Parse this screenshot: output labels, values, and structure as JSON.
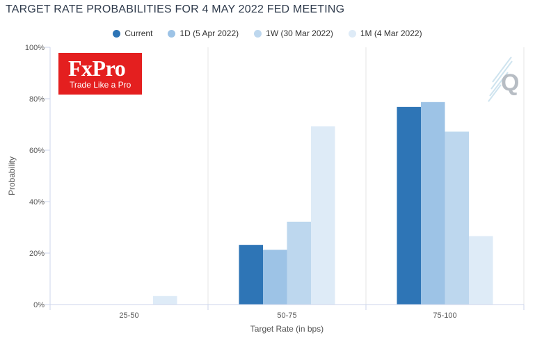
{
  "title": "TARGET RATE PROBABILITIES FOR 4 MAY 2022 FED MEETING",
  "logo": {
    "name": "FxPro",
    "tagline": "Trade Like a Pro"
  },
  "watermark_icon": "q-logo-icon",
  "chart_data": {
    "type": "bar",
    "title": "TARGET RATE PROBABILITIES FOR 4 MAY 2022 FED MEETING",
    "xlabel": "Target Rate (in bps)",
    "ylabel": "Probability",
    "categories": [
      "25-50",
      "50-75",
      "75-100"
    ],
    "ylim": [
      0,
      100
    ],
    "yticks": [
      "0%",
      "20%",
      "40%",
      "60%",
      "80%",
      "100%"
    ],
    "ytick_values": [
      0,
      20,
      40,
      60,
      80,
      100
    ],
    "legend_position": "top-center",
    "grid": "vertical",
    "series": [
      {
        "name": "Current",
        "color": "#2e75b6",
        "values": [
          0,
          23.2,
          76.8
        ]
      },
      {
        "name": "1D (5 Apr 2022)",
        "color": "#9dc3e6",
        "values": [
          0,
          21.3,
          78.7
        ]
      },
      {
        "name": "1W (30 Mar 2022)",
        "color": "#bdd7ee",
        "values": [
          0,
          32.2,
          67.2
        ]
      },
      {
        "name": "1M (4 Mar 2022)",
        "color": "#deebf7",
        "values": [
          3.3,
          69.3,
          26.6
        ]
      }
    ]
  }
}
